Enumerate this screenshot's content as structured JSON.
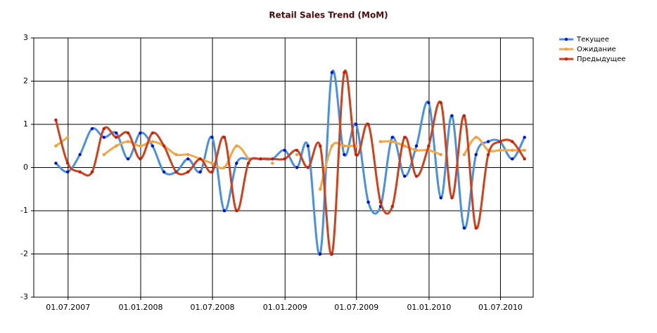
{
  "chart_data": {
    "type": "line",
    "title": "Retail Sales Trend (MoM)",
    "x": [
      "2007-05-31",
      "2007-06-30",
      "2007-07-31",
      "2007-08-31",
      "2007-09-30",
      "2007-10-31",
      "2007-11-30",
      "2007-12-31",
      "2008-01-31",
      "2008-02-29",
      "2008-03-31",
      "2008-04-30",
      "2008-05-31",
      "2008-06-30",
      "2008-07-31",
      "2008-08-31",
      "2008-09-30",
      "2008-10-31",
      "2008-11-30",
      "2008-12-31",
      "2009-01-31",
      "2009-02-28",
      "2009-03-31",
      "2009-04-30",
      "2009-05-31",
      "2009-06-30",
      "2009-07-31",
      "2009-08-31",
      "2009-09-30",
      "2009-10-31",
      "2009-11-30",
      "2009-12-31",
      "2010-01-31",
      "2010-02-28",
      "2010-03-31",
      "2010-04-30",
      "2010-05-31",
      "2010-06-30",
      "2010-07-31",
      "2010-08-31"
    ],
    "series": [
      {
        "name": "Текущее",
        "color": "#4a90e2",
        "marker_color": "#0010c8",
        "values": [
          0.1,
          -0.1,
          0.3,
          0.9,
          0.7,
          0.8,
          0.2,
          0.8,
          0.5,
          -0.1,
          -0.1,
          0.2,
          -0.1,
          0.7,
          -1.0,
          0.1,
          0.2,
          0.2,
          0.2,
          0.4,
          0.0,
          0.5,
          -2.0,
          2.2,
          0.3,
          1.0,
          -0.8,
          -0.9,
          0.7,
          -0.2,
          0.5,
          1.5,
          -0.7,
          1.2,
          -1.4,
          0.3,
          0.6,
          0.6,
          0.2,
          0.7
        ]
      },
      {
        "name": "Ожидание",
        "color": "#f0a848",
        "marker_color": "#e8a040",
        "values": [
          0.5,
          0.7,
          null,
          null,
          0.3,
          0.5,
          0.6,
          0.5,
          0.6,
          0.5,
          0.3,
          0.3,
          0.2,
          0.1,
          0.0,
          0.5,
          0.2,
          null,
          0.1,
          null,
          0.3,
          null,
          -0.5,
          0.5,
          0.5,
          0.5,
          null,
          0.6,
          0.6,
          0.5,
          0.4,
          0.4,
          0.3,
          null,
          0.3,
          0.7,
          0.4,
          0.4,
          0.4,
          0.4
        ]
      },
      {
        "name": "Предыдущее",
        "color": "#d2401a",
        "marker_color": "#c02010",
        "values": [
          1.1,
          0.1,
          -0.1,
          -0.1,
          0.9,
          0.7,
          0.8,
          0.2,
          0.8,
          0.5,
          -0.1,
          -0.1,
          0.2,
          -0.1,
          0.7,
          -1.0,
          0.1,
          0.2,
          0.2,
          0.2,
          0.4,
          0.0,
          0.5,
          -2.0,
          2.2,
          0.3,
          1.0,
          -0.8,
          -0.9,
          0.7,
          -0.2,
          0.5,
          1.5,
          -0.7,
          1.2,
          -1.4,
          0.3,
          0.6,
          0.6,
          0.2
        ]
      }
    ],
    "xlim": [
      "2007-04-05",
      "2010-09-22"
    ],
    "xticks": [
      {
        "value": "2007-07-01",
        "label": "01.07.2007"
      },
      {
        "value": "2008-01-01",
        "label": "01.01.2008"
      },
      {
        "value": "2008-07-01",
        "label": "01.07.2008"
      },
      {
        "value": "2009-01-01",
        "label": "01.01.2009"
      },
      {
        "value": "2009-07-01",
        "label": "01.07.2009"
      },
      {
        "value": "2010-01-01",
        "label": "01.01.2010"
      },
      {
        "value": "2010-07-01",
        "label": "01.07.2010"
      }
    ],
    "ylim": [
      -3,
      3
    ],
    "yticks": [
      -3,
      -2,
      -1,
      0,
      1,
      2,
      3
    ],
    "grid": true
  }
}
